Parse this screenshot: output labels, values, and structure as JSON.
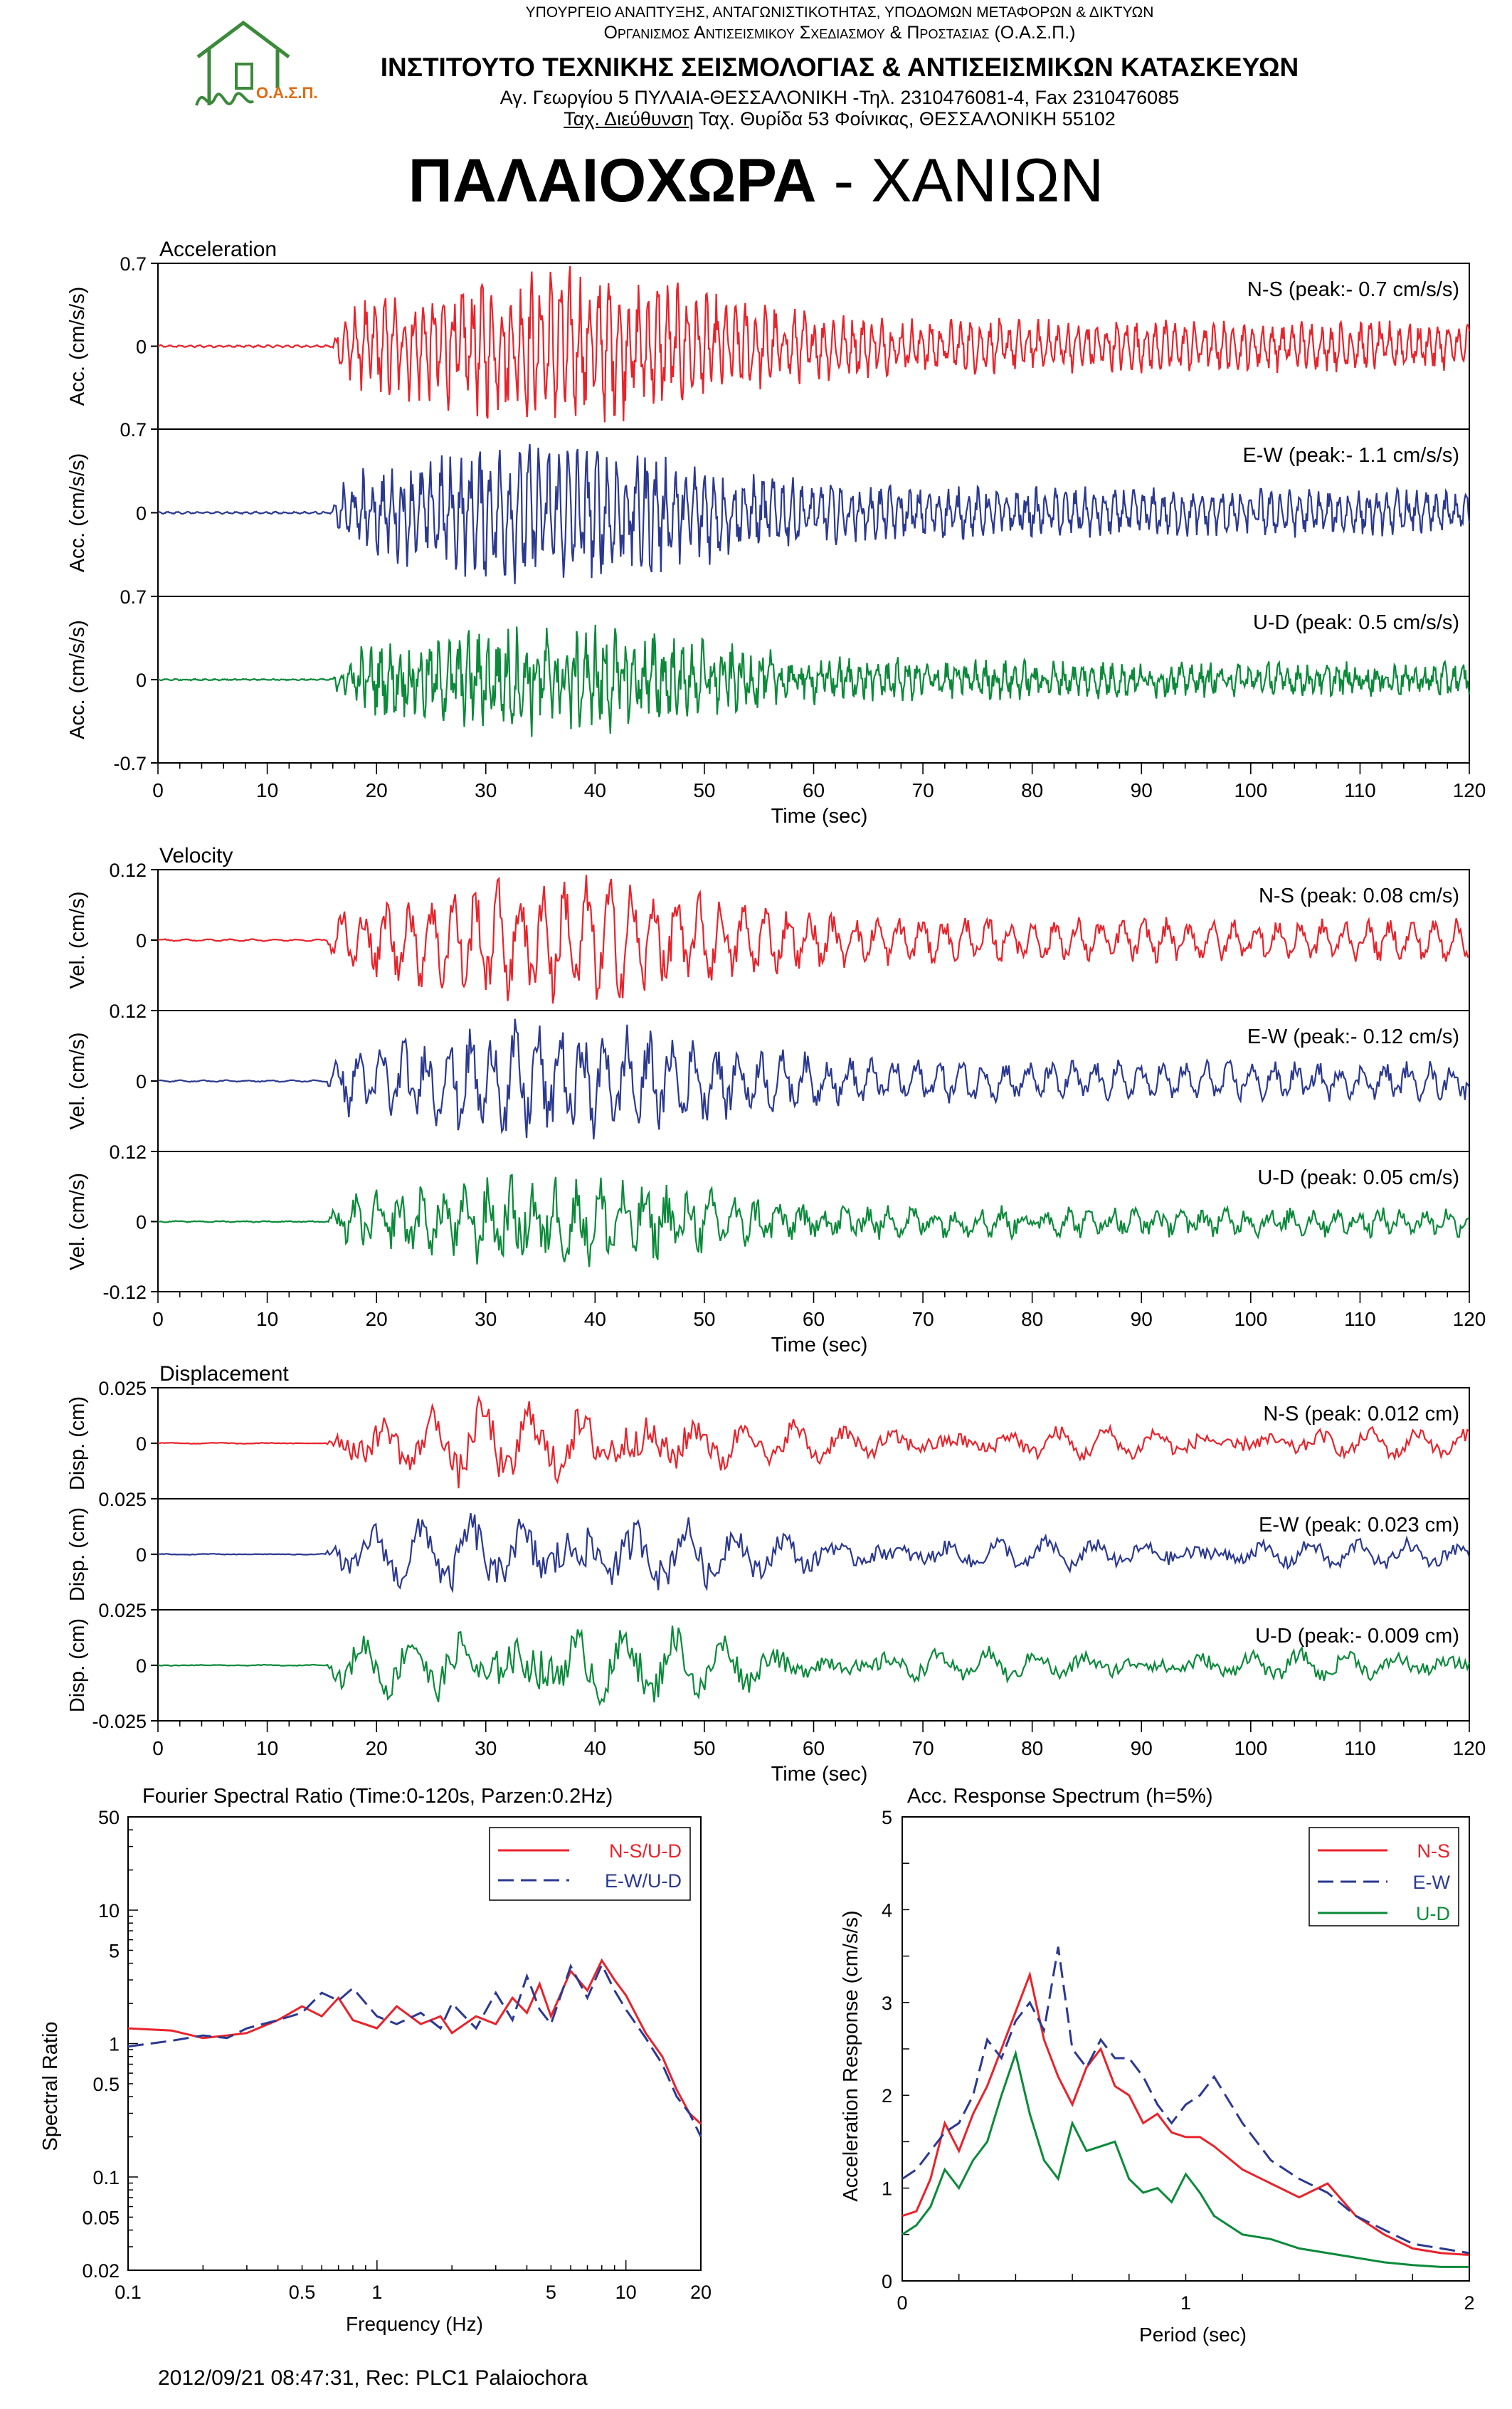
{
  "header": {
    "ministry": "ΥΠΟΥΡΓΕΙΟ ΑΝΑΠΤΥΞΗΣ, ΑΝΤΑΓΩΝΙΣΤΙΚΟΤΗΤΑΣ, ΥΠΟΔΟΜΩΝ ΜΕΤΑΦΟΡΩΝ & ΔΙΚΤΥΩΝ",
    "organization": "Οργανισμος Αντισεισμικου Σχεδιασμου & Προστασιας (Ο.Α.Σ.Π.)",
    "institute": "ΙΝΣΤΙΤΟΥΤΟ ΤΕΧΝΙΚΗΣ ΣΕΙΣΜΟΛΟΓΙΑΣ & ΑΝΤΙΣΕΙΣΜΙΚΩΝ ΚΑΤΑΣΚΕΥΩΝ",
    "address1": "Αγ. Γεωργίου 5 ΠΥΛΑΙΑ-ΘΕΣΣΑΛΟΝΙΚΗ -Τηλ. 2310476081-4,  Fax 2310476085",
    "address2_label": "Ταχ. Διεύθυνση",
    "address2": " Ταχ. Θυρίδα 53 Φοίνικας, ΘΕΣΣΑΛΟΝΙΚΗ 55102",
    "logo_text": "Ο.Α.Σ.Π.",
    "title_bold": "ΠΑΛΑΙΟΧΩΡΑ",
    "title_rest": " - ΧΑΝΙΩΝ"
  },
  "footer": {
    "text": "2012/09/21 08:47:31, Rec: PLC1 Palaiochora"
  },
  "colors": {
    "ns": "#e8232b",
    "ew": "#2b3990",
    "ud": "#0b8a3a"
  },
  "chart_data": [
    {
      "type": "line",
      "title": "Acceleration",
      "xlabel": "Time (sec)",
      "ylabel": "Acc. (cm/s/s)",
      "xlim": [
        0,
        120
      ],
      "xticks": [
        0,
        10,
        20,
        30,
        40,
        50,
        60,
        70,
        80,
        90,
        100,
        110,
        120
      ],
      "ylim": [
        -0.7,
        0.7
      ],
      "yticks": [
        "0.7",
        "0",
        "-0.7"
      ],
      "onset": 16,
      "series": [
        {
          "name": "N-S",
          "label": "N-S (peak:- 0.7 cm/s/s)",
          "peak": 0.7,
          "color": "#e8232b"
        },
        {
          "name": "E-W",
          "label": "E-W (peak:- 1.1 cm/s/s)",
          "peak": 1.1,
          "color": "#2b3990"
        },
        {
          "name": "U-D",
          "label": "U-D (peak: 0.5 cm/s/s)",
          "peak": 0.5,
          "color": "#0b8a3a"
        }
      ]
    },
    {
      "type": "line",
      "title": "Velocity",
      "xlabel": "Time (sec)",
      "ylabel": "Vel. (cm/s)",
      "xlim": [
        0,
        120
      ],
      "xticks": [
        0,
        10,
        20,
        30,
        40,
        50,
        60,
        70,
        80,
        90,
        100,
        110,
        120
      ],
      "ylim": [
        -0.12,
        0.12
      ],
      "yticks": [
        "0.12",
        "0",
        "-0.12"
      ],
      "onset": 15.5,
      "series": [
        {
          "name": "N-S",
          "label": "N-S (peak: 0.08 cm/s)",
          "peak": 0.08,
          "color": "#e8232b"
        },
        {
          "name": "E-W",
          "label": "E-W (peak:- 0.12 cm/s)",
          "peak": 0.12,
          "color": "#2b3990"
        },
        {
          "name": "U-D",
          "label": "U-D (peak: 0.05 cm/s)",
          "peak": 0.05,
          "color": "#0b8a3a"
        }
      ]
    },
    {
      "type": "line",
      "title": "Displacement",
      "xlabel": "Time (sec)",
      "ylabel": "Disp. (cm)",
      "xlim": [
        0,
        120
      ],
      "xticks": [
        0,
        10,
        20,
        30,
        40,
        50,
        60,
        70,
        80,
        90,
        100,
        110,
        120
      ],
      "ylim": [
        -0.025,
        0.025
      ],
      "yticks": [
        "0.025",
        "0",
        "-0.025"
      ],
      "onset": 15.5,
      "series": [
        {
          "name": "N-S",
          "label": "N-S (peak: 0.012 cm)",
          "peak": 0.012,
          "color": "#e8232b"
        },
        {
          "name": "E-W",
          "label": "E-W (peak: 0.023 cm)",
          "peak": 0.023,
          "color": "#2b3990"
        },
        {
          "name": "U-D",
          "label": "U-D (peak:- 0.009 cm)",
          "peak": 0.009,
          "color": "#0b8a3a"
        }
      ]
    },
    {
      "type": "line",
      "title": "Fourier Spectral Ratio (Time:0-120s, Parzen:0.2Hz)",
      "xlabel": "Frequency (Hz)",
      "ylabel": "Spectral Ratio",
      "xscale": "log",
      "yscale": "log",
      "xlim": [
        0.1,
        20
      ],
      "ylim": [
        0.02,
        50
      ],
      "xticks": [
        0.1,
        0.5,
        1,
        5,
        10,
        20
      ],
      "yticks": [
        0.02,
        0.05,
        0.1,
        0.5,
        1,
        5,
        10,
        50
      ],
      "legend": "top-right",
      "series": [
        {
          "name": "N-S/U-D",
          "color": "#e8232b",
          "dash": false,
          "x": [
            0.1,
            0.15,
            0.2,
            0.25,
            0.3,
            0.4,
            0.5,
            0.6,
            0.7,
            0.8,
            1,
            1.2,
            1.5,
            1.8,
            2,
            2.5,
            3,
            3.5,
            4,
            4.5,
            5,
            6,
            7,
            8,
            9,
            10,
            12,
            14,
            16,
            18,
            20
          ],
          "y": [
            1.3,
            1.25,
            1.1,
            1.15,
            1.2,
            1.5,
            1.9,
            1.6,
            2.2,
            1.5,
            1.3,
            1.9,
            1.4,
            1.6,
            1.2,
            1.6,
            1.4,
            2.2,
            1.7,
            2.8,
            1.6,
            3.5,
            2.5,
            4.2,
            3.0,
            2.3,
            1.2,
            0.8,
            0.45,
            0.3,
            0.25
          ]
        },
        {
          "name": "E-W/U-D",
          "color": "#2b3990",
          "dash": true,
          "x": [
            0.1,
            0.15,
            0.2,
            0.25,
            0.3,
            0.4,
            0.5,
            0.6,
            0.7,
            0.8,
            1,
            1.2,
            1.5,
            1.8,
            2,
            2.5,
            3,
            3.5,
            4,
            4.5,
            5,
            6,
            7,
            8,
            9,
            10,
            12,
            14,
            16,
            18,
            20
          ],
          "y": [
            0.95,
            1.05,
            1.15,
            1.1,
            1.3,
            1.5,
            1.7,
            2.4,
            2.1,
            2.6,
            1.6,
            1.4,
            1.7,
            1.3,
            2.0,
            1.3,
            2.4,
            1.5,
            3.2,
            1.8,
            1.4,
            3.8,
            2.2,
            3.9,
            2.5,
            1.8,
            1.1,
            0.7,
            0.4,
            0.3,
            0.2
          ]
        }
      ]
    },
    {
      "type": "line",
      "title": "Acc. Response Spectrum (h=5%)",
      "xlabel": "Period (sec)",
      "ylabel": "Acceleration Response (cm/s/s)",
      "xlim": [
        0,
        2
      ],
      "ylim": [
        0,
        5
      ],
      "xticks": [
        0,
        1,
        2
      ],
      "yticks": [
        0,
        1,
        2,
        3,
        4,
        5
      ],
      "legend": "top-right",
      "series": [
        {
          "name": "N-S",
          "color": "#e8232b",
          "dash": false,
          "x": [
            0,
            0.05,
            0.1,
            0.15,
            0.2,
            0.25,
            0.3,
            0.35,
            0.4,
            0.45,
            0.5,
            0.55,
            0.6,
            0.65,
            0.7,
            0.75,
            0.8,
            0.85,
            0.9,
            0.95,
            1.0,
            1.05,
            1.1,
            1.2,
            1.3,
            1.4,
            1.5,
            1.6,
            1.7,
            1.8,
            1.9,
            2.0
          ],
          "y": [
            0.7,
            0.75,
            1.1,
            1.7,
            1.4,
            1.8,
            2.1,
            2.5,
            2.9,
            3.3,
            2.6,
            2.2,
            1.9,
            2.3,
            2.5,
            2.1,
            2.0,
            1.7,
            1.8,
            1.6,
            1.55,
            1.55,
            1.45,
            1.2,
            1.05,
            0.9,
            1.05,
            0.7,
            0.5,
            0.35,
            0.3,
            0.28
          ]
        },
        {
          "name": "E-W",
          "color": "#2b3990",
          "dash": true,
          "x": [
            0,
            0.05,
            0.1,
            0.15,
            0.2,
            0.25,
            0.3,
            0.35,
            0.4,
            0.45,
            0.5,
            0.55,
            0.6,
            0.65,
            0.7,
            0.75,
            0.8,
            0.85,
            0.9,
            0.95,
            1.0,
            1.05,
            1.1,
            1.2,
            1.3,
            1.4,
            1.5,
            1.6,
            1.7,
            1.8,
            1.9,
            2.0
          ],
          "y": [
            1.1,
            1.2,
            1.4,
            1.6,
            1.7,
            2.0,
            2.6,
            2.4,
            2.8,
            3.0,
            2.7,
            3.6,
            2.5,
            2.3,
            2.6,
            2.4,
            2.4,
            2.2,
            1.9,
            1.7,
            1.9,
            2.0,
            2.2,
            1.7,
            1.3,
            1.1,
            0.95,
            0.7,
            0.55,
            0.4,
            0.35,
            0.3
          ]
        },
        {
          "name": "U-D",
          "color": "#0b8a3a",
          "dash": false,
          "x": [
            0,
            0.05,
            0.1,
            0.15,
            0.2,
            0.25,
            0.3,
            0.35,
            0.4,
            0.45,
            0.5,
            0.55,
            0.6,
            0.65,
            0.7,
            0.75,
            0.8,
            0.85,
            0.9,
            0.95,
            1.0,
            1.05,
            1.1,
            1.2,
            1.3,
            1.4,
            1.5,
            1.6,
            1.7,
            1.8,
            1.9,
            2.0
          ],
          "y": [
            0.5,
            0.6,
            0.8,
            1.2,
            1.0,
            1.3,
            1.5,
            2.0,
            2.45,
            1.8,
            1.3,
            1.1,
            1.7,
            1.4,
            1.45,
            1.5,
            1.1,
            0.95,
            1.0,
            0.85,
            1.15,
            0.95,
            0.7,
            0.5,
            0.45,
            0.35,
            0.3,
            0.25,
            0.2,
            0.17,
            0.15,
            0.15
          ]
        }
      ]
    }
  ]
}
